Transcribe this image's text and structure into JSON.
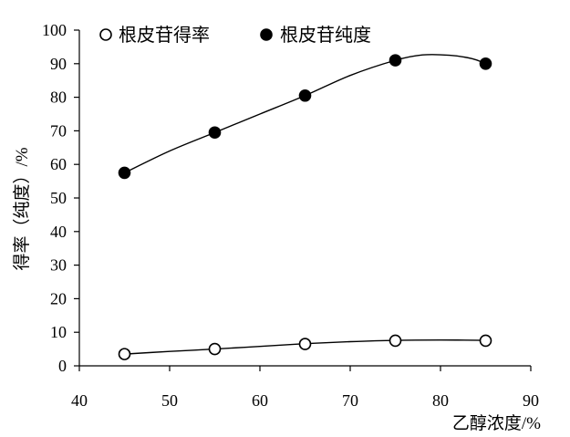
{
  "chart_data": {
    "type": "scatter",
    "title": "",
    "xlabel": "乙醇浓度/%",
    "ylabel": "得率（纯度）/%",
    "xlim": [
      40,
      90
    ],
    "ylim": [
      0,
      100
    ],
    "xticks": [
      40,
      50,
      60,
      70,
      80,
      90
    ],
    "yticks": [
      0,
      10,
      20,
      30,
      40,
      50,
      60,
      70,
      80,
      90,
      100
    ],
    "grid": false,
    "legend_position": "top",
    "x": [
      45,
      55,
      65,
      75,
      85
    ],
    "series": [
      {
        "name": "根皮苷得率",
        "marker": "open-circle",
        "values": [
          3.5,
          5.0,
          6.5,
          7.5,
          7.5
        ],
        "trendline": [
          [
            45,
            3.5
          ],
          [
            50,
            4.3
          ],
          [
            55,
            5.0
          ],
          [
            60,
            5.8
          ],
          [
            65,
            6.6
          ],
          [
            70,
            7.2
          ],
          [
            75,
            7.6
          ],
          [
            80,
            7.7
          ],
          [
            85,
            7.6
          ]
        ]
      },
      {
        "name": "根皮苷纯度",
        "marker": "filled-circle",
        "values": [
          57.5,
          69.5,
          80.5,
          91.0,
          90.0
        ],
        "trendline": [
          [
            45,
            57.5
          ],
          [
            50,
            64.0
          ],
          [
            55,
            69.5
          ],
          [
            60,
            75.0
          ],
          [
            65,
            80.5
          ],
          [
            70,
            86.5
          ],
          [
            75,
            91.0
          ],
          [
            78,
            92.6
          ],
          [
            81,
            92.5
          ],
          [
            83.5,
            91.5
          ],
          [
            85,
            90.0
          ]
        ]
      }
    ]
  }
}
